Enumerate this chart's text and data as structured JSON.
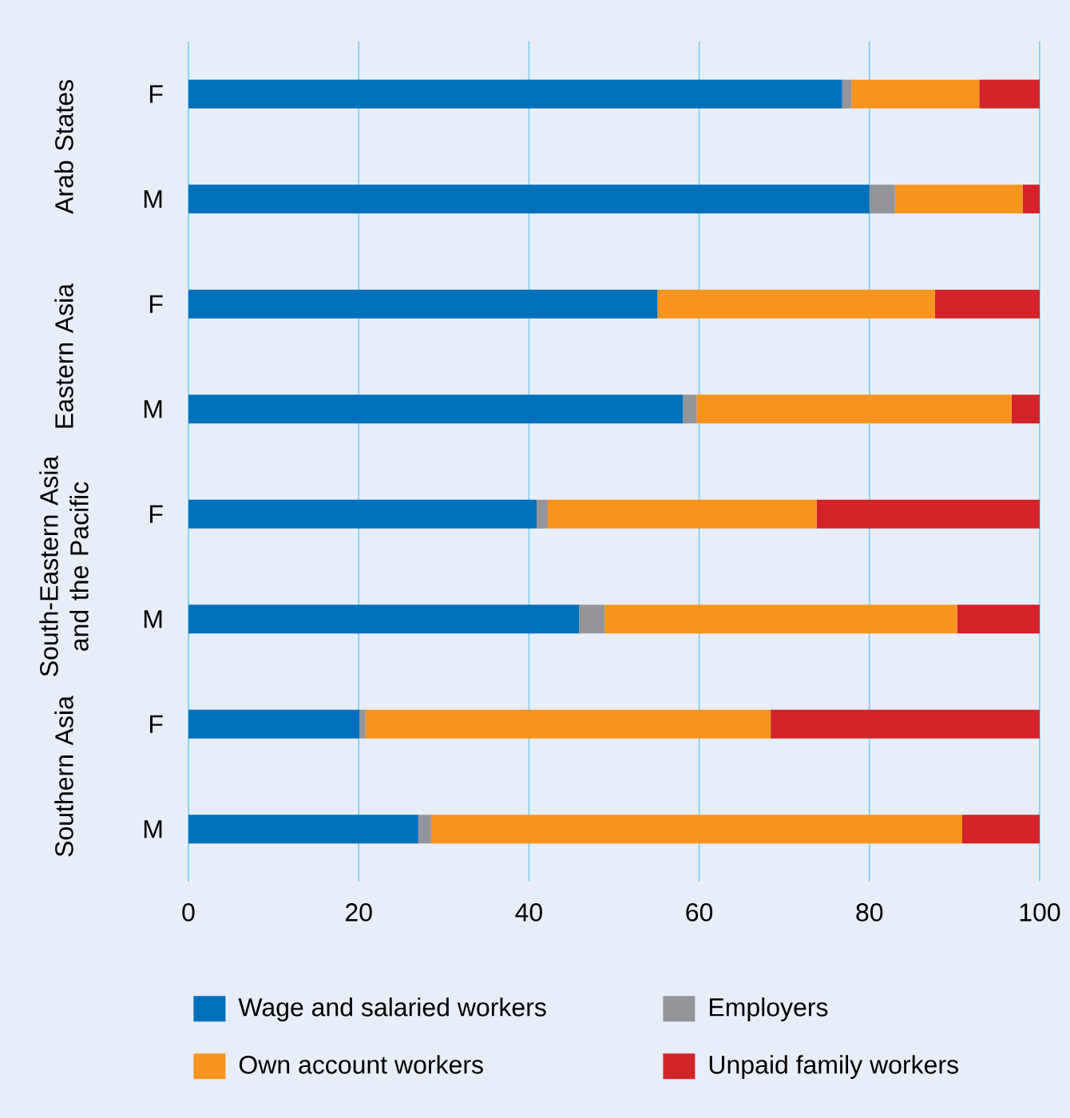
{
  "chart_data": {
    "type": "bar",
    "orientation": "horizontal",
    "stacked": true,
    "categories": [
      "F",
      "M",
      "F",
      "M",
      "F",
      "M",
      "F",
      "M"
    ],
    "series": [
      {
        "name": "Wage and salaried workers",
        "color": "#0070bb",
        "values": [
          76.8,
          80.0,
          55.1,
          58.1,
          40.9,
          45.9,
          20.1,
          27.0
        ]
      },
      {
        "name": "Employers",
        "color": "#939598",
        "values": [
          1.1,
          3.0,
          0,
          1.6,
          1.3,
          3.0,
          0.7,
          1.5
        ]
      },
      {
        "name": "Own account workers",
        "color": "#f7941d",
        "values": [
          15.0,
          15.0,
          32.6,
          37.0,
          31.6,
          41.4,
          47.6,
          62.4
        ]
      },
      {
        "name": "Unpaid family workers",
        "color": "#d2232a",
        "values": [
          7.1,
          2.0,
          12.3,
          3.3,
          26.2,
          9.7,
          31.6,
          9.1
        ]
      }
    ],
    "annotations": [
      "Arab States",
      "Eastern Asia",
      "South-Eastern Asia and the Pacific",
      "Southern Asia"
    ],
    "xlim": [
      0,
      100
    ],
    "xticks": [
      0,
      20,
      40,
      60,
      80,
      100
    ],
    "grid": "x",
    "legend": "bottom"
  }
}
